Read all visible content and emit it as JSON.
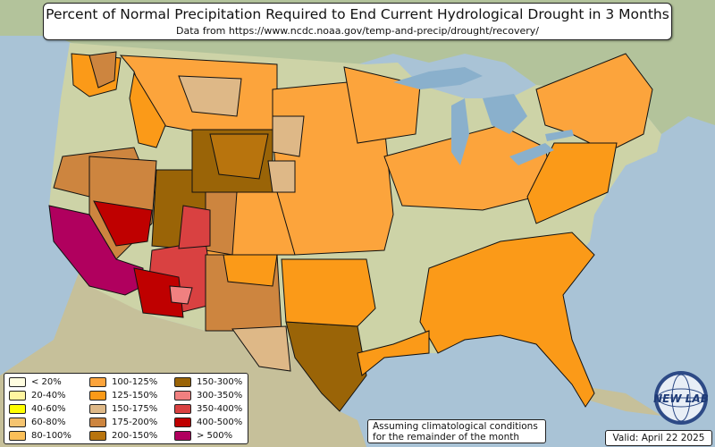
{
  "title": "Percent of Normal Precipitation Required to End Current Hydrological Drought in 3 Months",
  "subtitle": "Data from https://www.ncdc.noaa.gov/temp-and-precip/drought/recovery/",
  "legend": [
    {
      "label": "< 20%",
      "color": "#fffde0"
    },
    {
      "label": "20-40%",
      "color": "#fff5a0"
    },
    {
      "label": "40-60%",
      "color": "#ffff00"
    },
    {
      "label": "60-80%",
      "color": "#f5c470"
    },
    {
      "label": "80-100%",
      "color": "#fbbf58"
    },
    {
      "label": "100-125%",
      "color": "#fca43c"
    },
    {
      "label": "125-150%",
      "color": "#fb9a18"
    },
    {
      "label": "150-175%",
      "color": "#deb887"
    },
    {
      "label": "175-200%",
      "color": "#cd853f"
    },
    {
      "label": "200-150%",
      "color": "#b8740d"
    },
    {
      "label": "150-300%",
      "color": "#9a6407"
    },
    {
      "label": "300-350%",
      "color": "#f08080"
    },
    {
      "label": "350-400%",
      "color": "#d94141"
    },
    {
      "label": "400-500%",
      "color": "#bf0000"
    },
    {
      "label": "> 500%",
      "color": "#b0005e"
    }
  ],
  "note": "Assuming climatological conditions for the remainder of the month",
  "valid": "Valid: April 22 2025",
  "logo": {
    "text": "NEW LAB",
    "icon": "globe-icon"
  }
}
